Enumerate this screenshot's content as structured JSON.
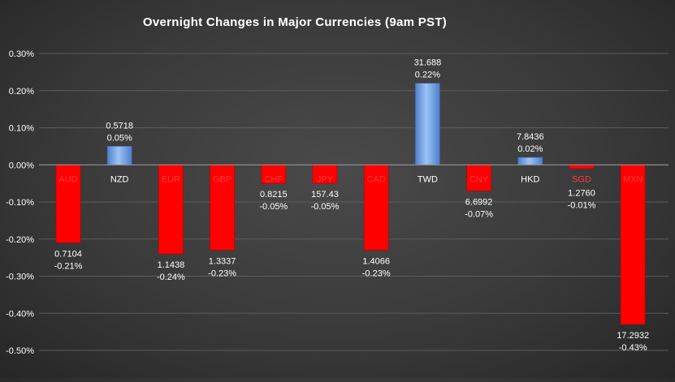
{
  "chart_data": {
    "type": "bar",
    "title": "Overnight Changes in Major Currencies (9am PST)",
    "xlabel": "",
    "ylabel": "",
    "ylim": [
      -0.5,
      0.3
    ],
    "yticks": [
      0.3,
      0.2,
      0.1,
      0.0,
      -0.1,
      -0.2,
      -0.3,
      -0.4,
      -0.5
    ],
    "ytick_labels": [
      "0.30%",
      "0.20%",
      "0.10%",
      "0.00%",
      "-0.10%",
      "-0.20%",
      "-0.30%",
      "-0.40%",
      "-0.50%"
    ],
    "grid": true,
    "legend": "none",
    "categories": [
      "AUD",
      "NZD",
      "EUR",
      "GBP",
      "CHF",
      "JPY",
      "CAD",
      "TWD",
      "CNY",
      "HKD",
      "SGD",
      "MXN"
    ],
    "values": [
      -0.21,
      0.05,
      -0.24,
      -0.23,
      -0.05,
      -0.05,
      -0.23,
      0.22,
      -0.07,
      0.02,
      -0.01,
      -0.43
    ],
    "rates": [
      "0.7104",
      "0.5718",
      "1.1438",
      "1.3337",
      "0.8215",
      "157.43",
      "1.4066",
      "31.688",
      "6.6992",
      "7.8436",
      "1.2760",
      "17.2932"
    ],
    "value_labels": [
      "-0.21%",
      "0.05%",
      "-0.24%",
      "-0.23%",
      "-0.05%",
      "-0.05%",
      "-0.23%",
      "0.22%",
      "-0.07%",
      "0.02%",
      "-0.01%",
      "-0.43%"
    ],
    "colors": {
      "positive": "#6a9ee6",
      "negative": "#ff0000",
      "negative_label": "#ff3b3b",
      "text": "#ffffff"
    }
  }
}
